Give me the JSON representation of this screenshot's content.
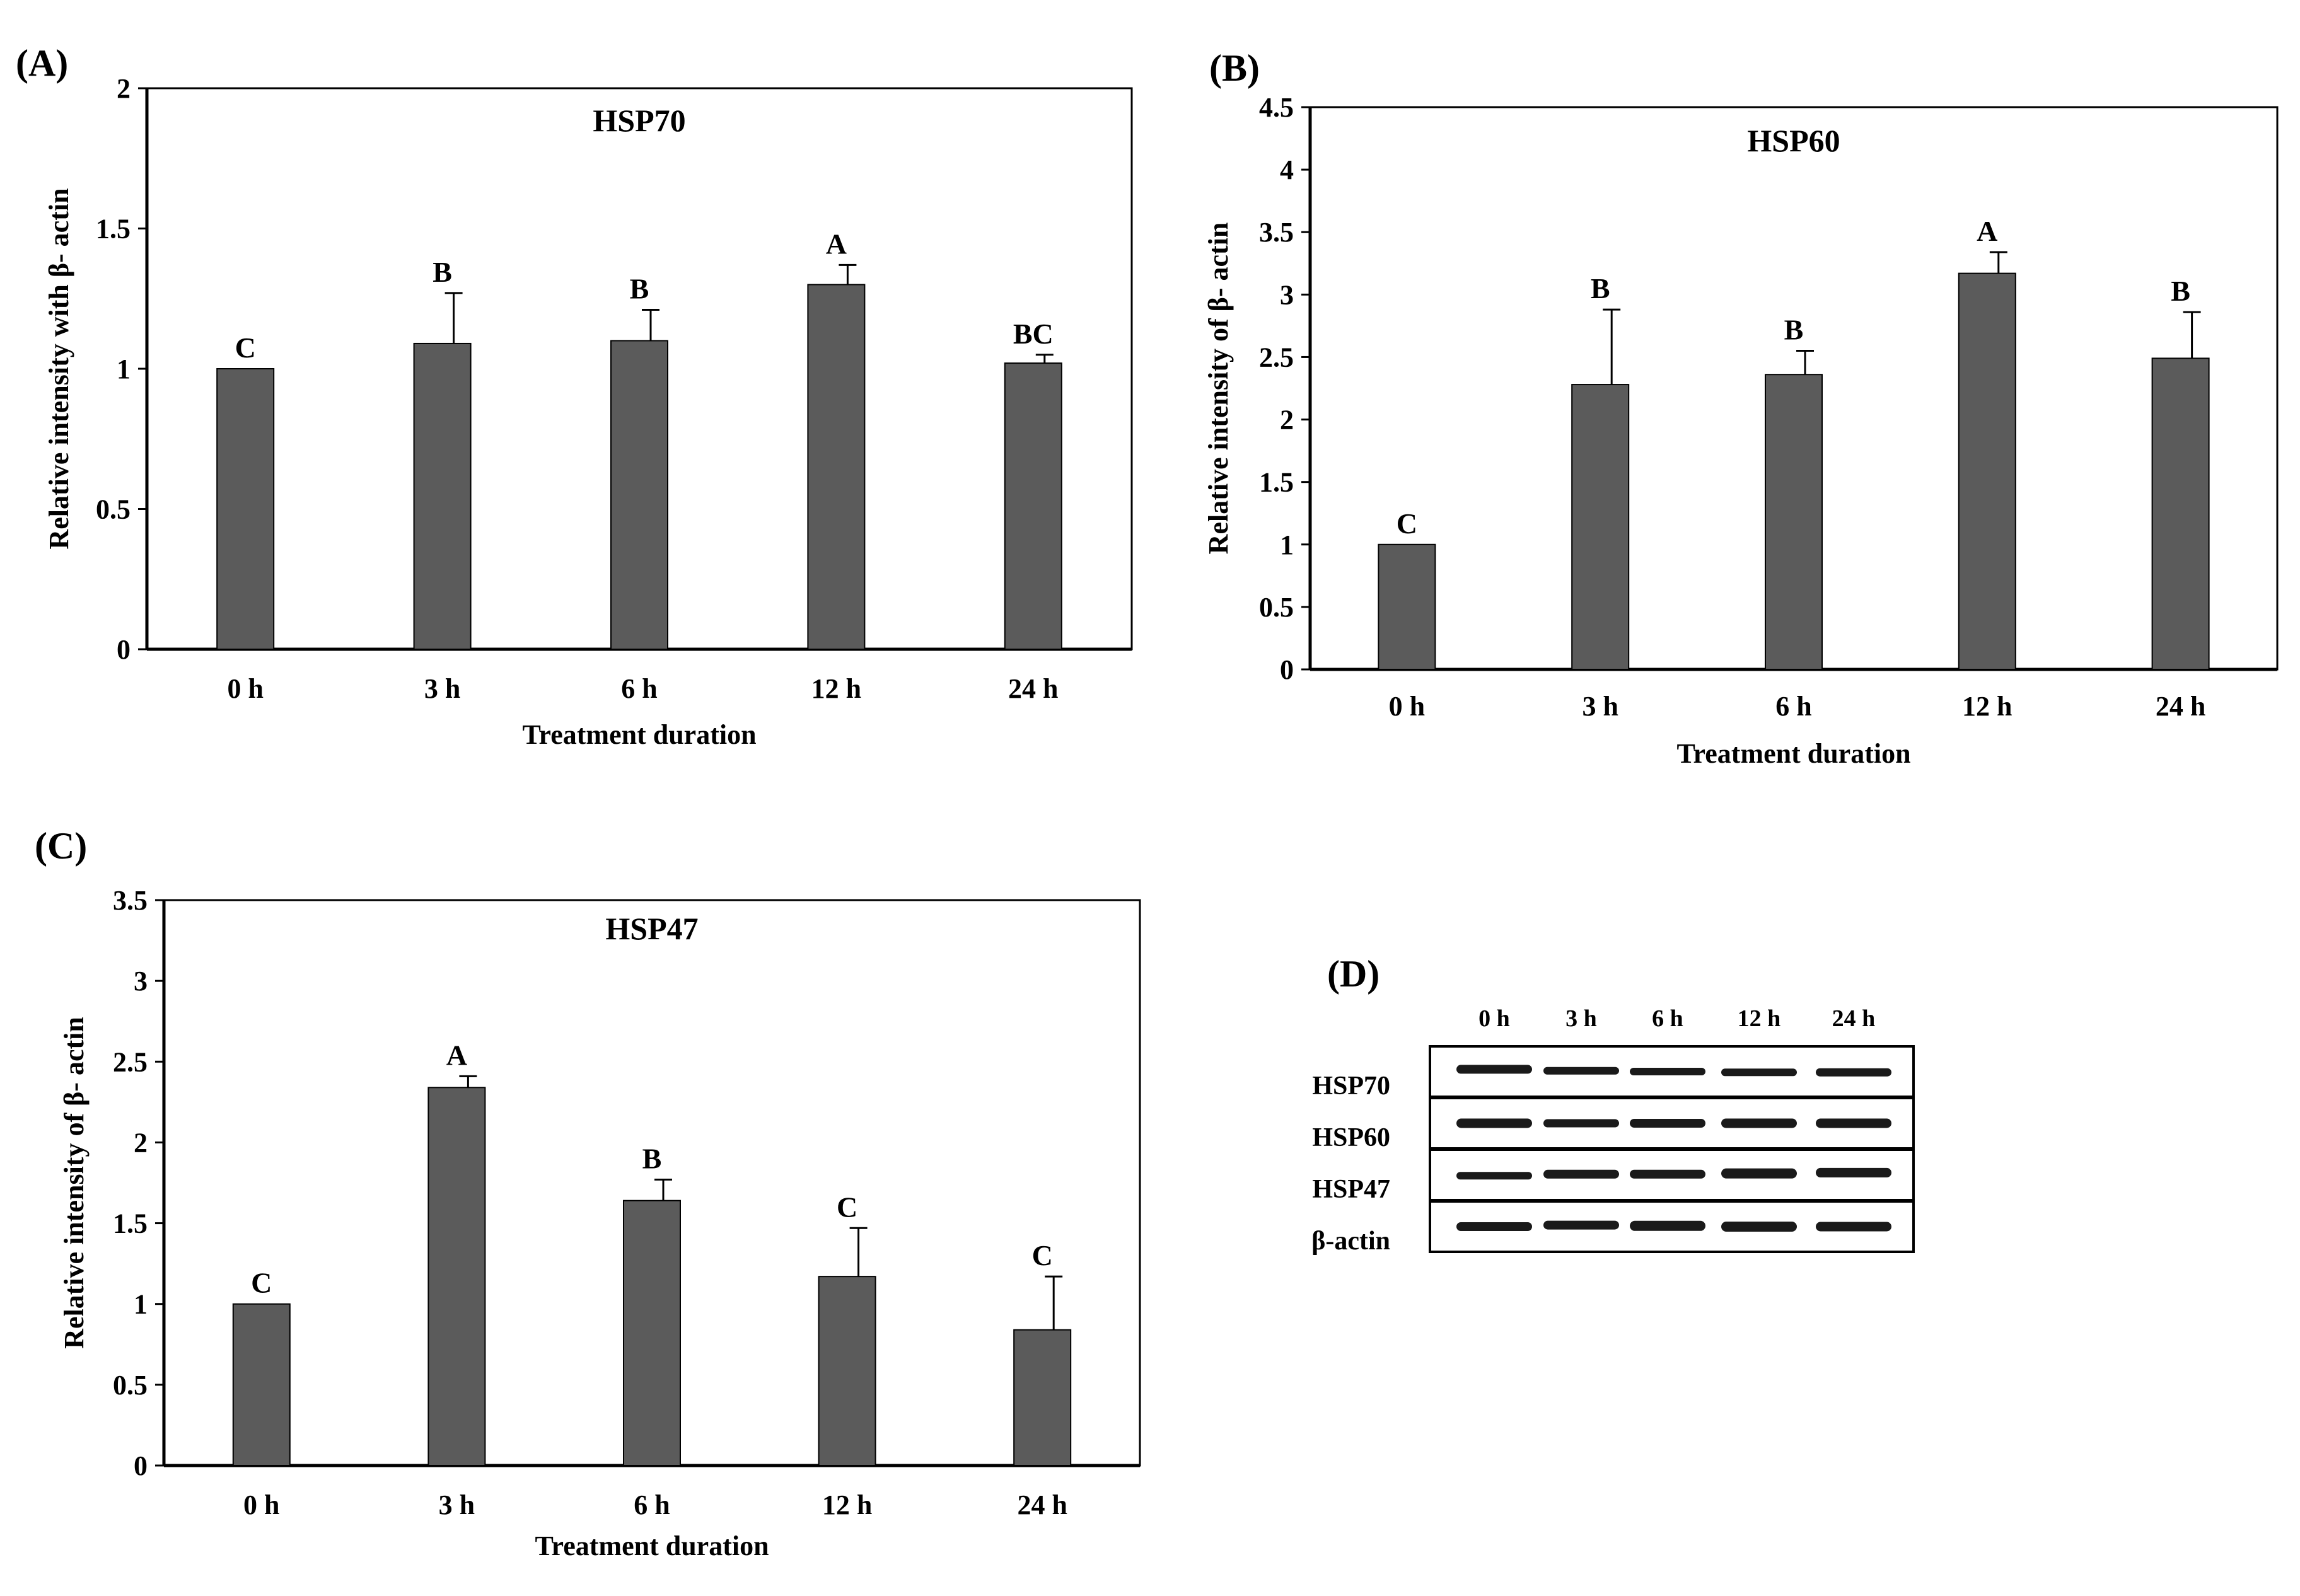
{
  "figure": {
    "colors": {
      "bar_fill": "#5b5b5b",
      "bar_stroke": "#000000",
      "axis": "#000000",
      "background": "#ffffff",
      "blot_band": "#1a1a1a"
    }
  },
  "chart_data": [
    {
      "panel": "(A)",
      "type": "bar",
      "title": "HSP70",
      "categories": [
        "0 h",
        "3 h",
        "6 h",
        "12 h",
        "24 h"
      ],
      "values": [
        1.0,
        1.09,
        1.1,
        1.3,
        1.02
      ],
      "errors": [
        0,
        0.18,
        0.11,
        0.07,
        0.03
      ],
      "significance": [
        "C",
        "B",
        "B",
        "A",
        "BC"
      ],
      "xlabel": "Treatment  duration",
      "ylabel": "Relative  intensity with β- actin",
      "ylim": [
        0,
        2
      ],
      "yticks": [
        "0",
        "0.5",
        "1",
        "1.5",
        "2"
      ],
      "ytick_values": [
        0,
        0.5,
        1,
        1.5,
        2
      ],
      "grid": false
    },
    {
      "panel": "(B)",
      "type": "bar",
      "title": "HSP60",
      "categories": [
        "0 h",
        "3 h",
        "6 h",
        "12 h",
        "24 h"
      ],
      "values": [
        1.0,
        2.28,
        2.36,
        3.17,
        2.49
      ],
      "errors": [
        0,
        0.6,
        0.19,
        0.17,
        0.37
      ],
      "significance": [
        "C",
        "B",
        "B",
        "A",
        "B"
      ],
      "xlabel": "Treatment  duration",
      "ylabel": "Relative  intensity of β- actin",
      "ylim": [
        0,
        4.5
      ],
      "yticks": [
        "0",
        "0.5",
        "1",
        "1.5",
        "2",
        "2.5",
        "3",
        "3.5",
        "4",
        "4.5"
      ],
      "ytick_values": [
        0,
        0.5,
        1,
        1.5,
        2,
        2.5,
        3,
        3.5,
        4,
        4.5
      ],
      "grid": false
    },
    {
      "panel": "(C)",
      "type": "bar",
      "title": "HSP47",
      "categories": [
        "0 h",
        "3 h",
        "6 h",
        "12 h",
        "24 h"
      ],
      "values": [
        1.0,
        2.34,
        1.64,
        1.17,
        0.84
      ],
      "errors": [
        0,
        0.07,
        0.13,
        0.3,
        0.33
      ],
      "significance": [
        "C",
        "A",
        "B",
        "C",
        "C"
      ],
      "xlabel": "Treatment  duration",
      "ylabel": "Relative  intensity of β- actin",
      "ylim": [
        0,
        3.5
      ],
      "yticks": [
        "0",
        "0.5",
        "1",
        "1.5",
        "2",
        "2.5",
        "3",
        "3.5"
      ],
      "ytick_values": [
        0,
        0.5,
        1,
        1.5,
        2,
        2.5,
        3,
        3.5
      ],
      "grid": false
    }
  ],
  "blot": {
    "panel": "(D)",
    "lanes": [
      "0 h",
      "3 h",
      "6 h",
      "12 h",
      "24 h"
    ],
    "rows": [
      "HSP70",
      "HSP60",
      "HSP47",
      "β-actin"
    ]
  }
}
